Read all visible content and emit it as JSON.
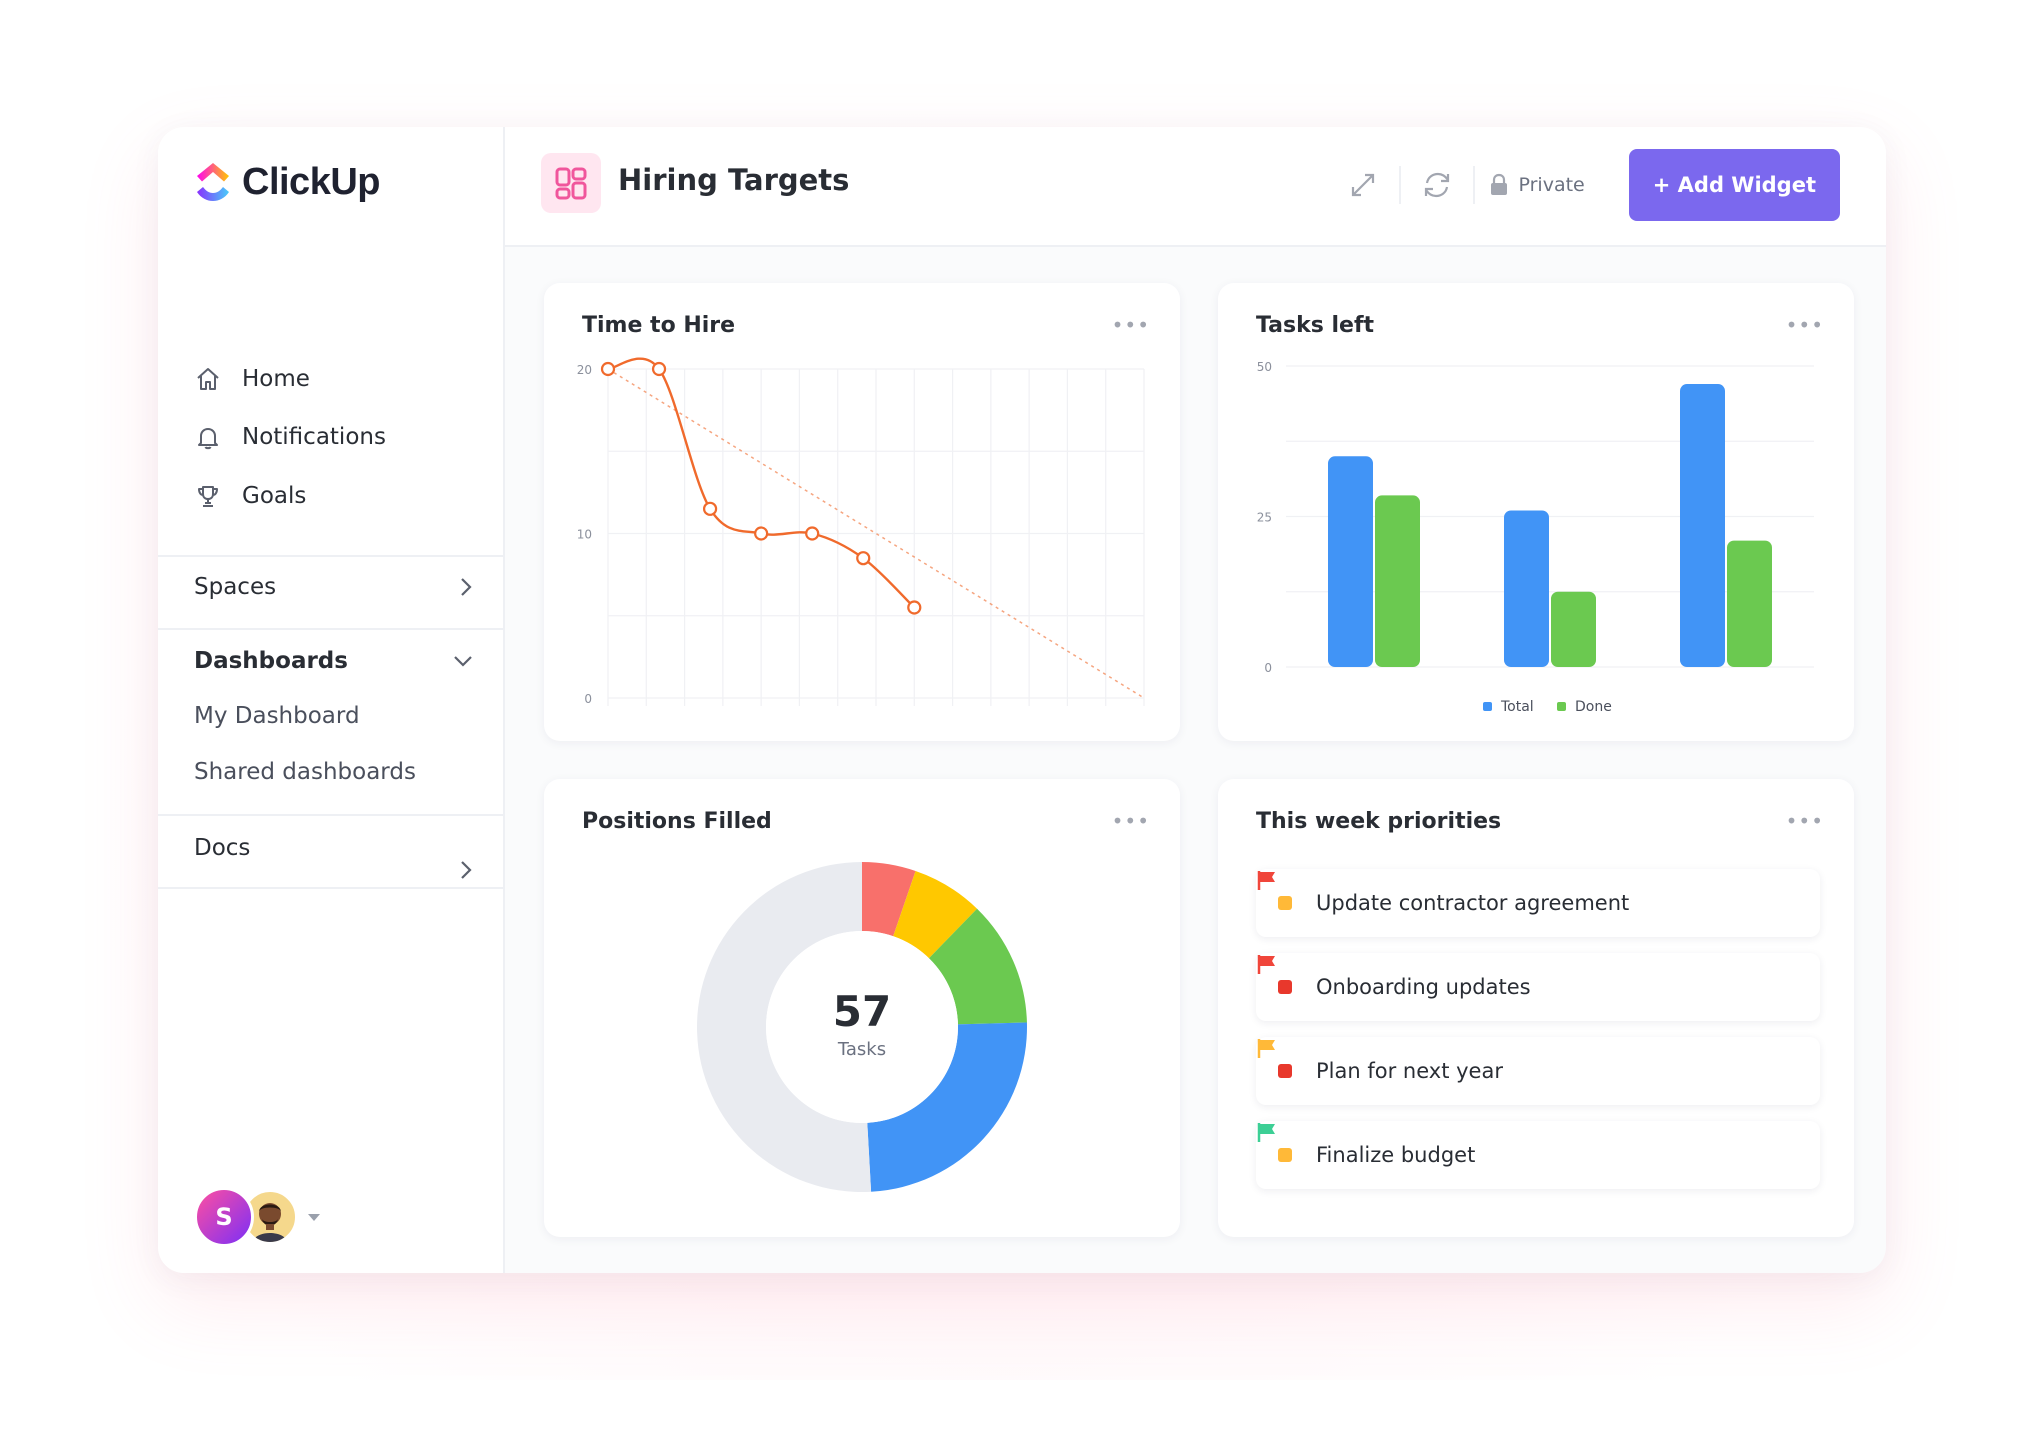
{
  "app": {
    "name": "ClickUp"
  },
  "sidebar": {
    "nav": [
      {
        "label": "Home",
        "icon": "home-icon"
      },
      {
        "label": "Notifications",
        "icon": "bell-icon"
      },
      {
        "label": "Goals",
        "icon": "trophy-icon"
      }
    ],
    "spaces_label": "Spaces",
    "dashboards_label": "Dashboards",
    "dashboards_items": [
      "My Dashboard",
      "Shared dashboards"
    ],
    "docs_label": "Docs",
    "avatar_initial": "S"
  },
  "header": {
    "title": "Hiring Targets",
    "private_label": "Private",
    "add_widget_label": "+ Add Widget"
  },
  "colors": {
    "accent": "#7b68ee",
    "line": "#f06a2c",
    "blue": "#4194f6",
    "green": "#6bc950",
    "red": "#f8706b",
    "yellow": "#ffc800",
    "grey": "#e9ebf0"
  },
  "cards": {
    "time_to_hire": {
      "title": "Time to Hire",
      "more": "•••"
    },
    "tasks_left": {
      "title": "Tasks left",
      "more": "•••"
    },
    "positions_filled": {
      "title": "Positions Filled",
      "more": "•••",
      "center_value": "57",
      "center_label": "Tasks"
    },
    "priorities": {
      "title": "This week priorities",
      "more": "•••",
      "items": [
        {
          "label": "Update contractor agreement",
          "dot": "#ffb938",
          "flag": "#f0453a"
        },
        {
          "label": "Onboarding updates",
          "dot": "#e8382c",
          "flag": "#f0453a"
        },
        {
          "label": "Plan for next year",
          "dot": "#e8382c",
          "flag": "#ffb938"
        },
        {
          "label": "Finalize budget",
          "dot": "#ffb938",
          "flag": "#3ccf95"
        }
      ]
    }
  },
  "chart_data": [
    {
      "type": "line",
      "title": "Time to Hire",
      "ylim": [
        0,
        20
      ],
      "yticks": [
        0,
        10,
        20
      ],
      "x": [
        0,
        1,
        2,
        3,
        4,
        5,
        6
      ],
      "series": [
        {
          "values": [
            20,
            20,
            11.5,
            10,
            10,
            8.5,
            5.5
          ]
        }
      ],
      "trend": {
        "from": [
          0,
          20
        ],
        "to": [
          10.5,
          0
        ]
      },
      "xlim": [
        0,
        10.5
      ],
      "grid": true
    },
    {
      "type": "bar",
      "title": "Tasks left",
      "categories": [
        "",
        "",
        ""
      ],
      "ylim": [
        0,
        50
      ],
      "yticks": [
        0,
        25,
        50
      ],
      "series": [
        {
          "name": "Total",
          "values": [
            35,
            26,
            47
          ]
        },
        {
          "name": "Done",
          "values": [
            28.5,
            12.5,
            21
          ]
        }
      ],
      "legend": "bottom"
    },
    {
      "type": "pie",
      "title": "Positions Filled",
      "total": 57,
      "slices": [
        {
          "value": 3,
          "color": "#f8706b"
        },
        {
          "value": 4,
          "color": "#ffc800"
        },
        {
          "value": 7,
          "color": "#6bc950"
        },
        {
          "value": 14,
          "color": "#4194f6"
        },
        {
          "value": 29,
          "color": "#e9ebf0"
        }
      ]
    }
  ]
}
